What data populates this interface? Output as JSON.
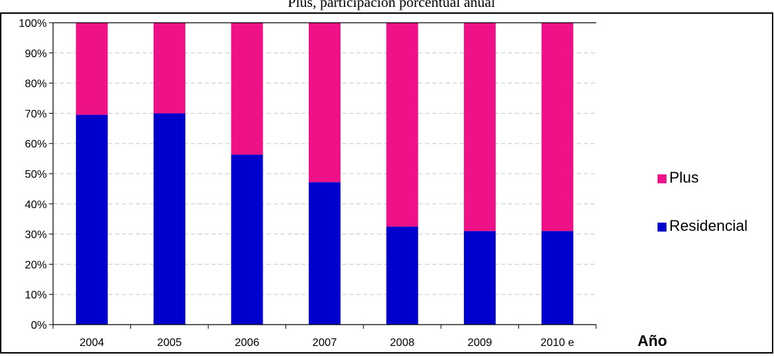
{
  "chart_data": {
    "type": "bar",
    "stacked": true,
    "title": "Plus, participación porcentual anual",
    "categories": [
      "2004",
      "2005",
      "2006",
      "2007",
      "2008",
      "2009",
      "2010 e"
    ],
    "series": [
      {
        "name": "Residencial",
        "values": [
          69.5,
          70,
          56.3,
          47.2,
          32.5,
          31,
          31
        ]
      },
      {
        "name": "Plus",
        "values": [
          30.5,
          30,
          43.7,
          52.8,
          67.5,
          69,
          69
        ]
      }
    ],
    "xlabel": "Año",
    "ylabel": "",
    "ylim": [
      0,
      100
    ],
    "yticks": [
      0,
      10,
      20,
      30,
      40,
      50,
      60,
      70,
      80,
      90,
      100
    ],
    "ytick_format": "percent",
    "colors": {
      "Residencial": "#0000cc",
      "Plus": "#ee1188"
    },
    "grid": true,
    "legend": "right",
    "legend_order": [
      "Plus",
      "Residencial"
    ]
  }
}
